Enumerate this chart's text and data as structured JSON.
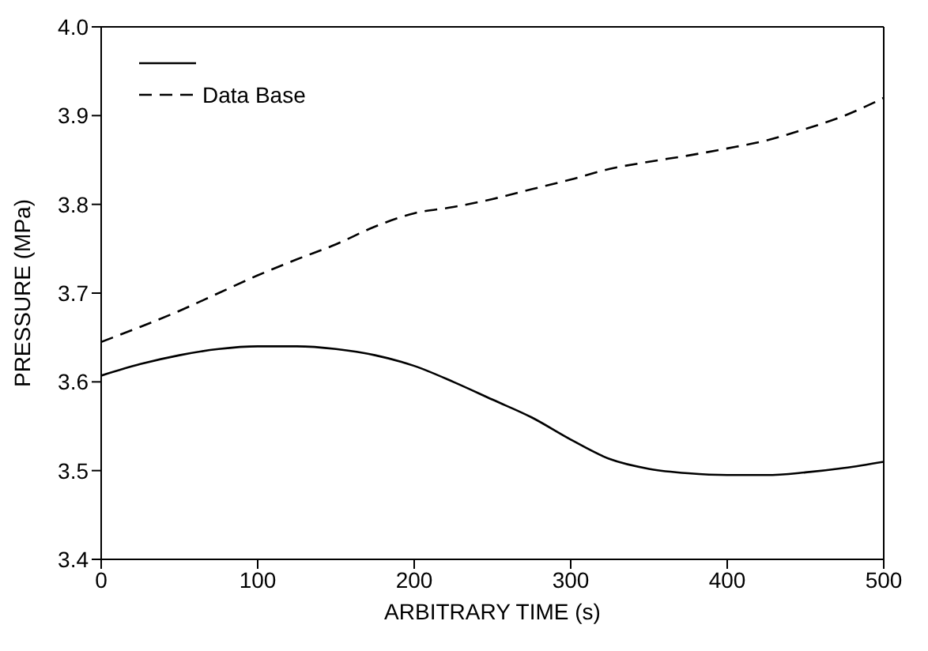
{
  "chart_data": {
    "type": "line",
    "xlabel": "ARBITRARY TIME (s)",
    "ylabel": "PRESSURE (MPa)",
    "x": [
      0,
      25,
      50,
      75,
      100,
      125,
      150,
      175,
      200,
      225,
      250,
      275,
      300,
      325,
      350,
      375,
      400,
      425,
      450,
      475,
      500
    ],
    "series": [
      {
        "color": "#000000",
        "line_style": "solid",
        "values": [
          3.607,
          3.62,
          3.63,
          3.637,
          3.64,
          3.64,
          3.637,
          3.63,
          3.618,
          3.6,
          3.58,
          3.56,
          3.535,
          3.513,
          3.502,
          3.497,
          3.495,
          3.495,
          3.498,
          3.503,
          3.51
        ]
      },
      {
        "name": "Data Base",
        "color": "#000000",
        "line_style": "dashed",
        "values": [
          3.645,
          3.662,
          3.68,
          3.7,
          3.72,
          3.738,
          3.755,
          3.775,
          3.79,
          3.797,
          3.806,
          3.817,
          3.828,
          3.84,
          3.848,
          3.855,
          3.863,
          3.872,
          3.885,
          3.9,
          3.92
        ]
      }
    ],
    "xlim": [
      0,
      500
    ],
    "xticks": [
      0,
      100,
      200,
      300,
      400,
      500
    ],
    "ylim": [
      3.4,
      4.0
    ],
    "yticks": [
      3.4,
      3.5,
      3.6,
      3.7,
      3.8,
      3.9,
      {
        "value": 4.0,
        "label": "4.0"
      }
    ],
    "grid": false,
    "legend": "top left",
    "marker": "none"
  }
}
